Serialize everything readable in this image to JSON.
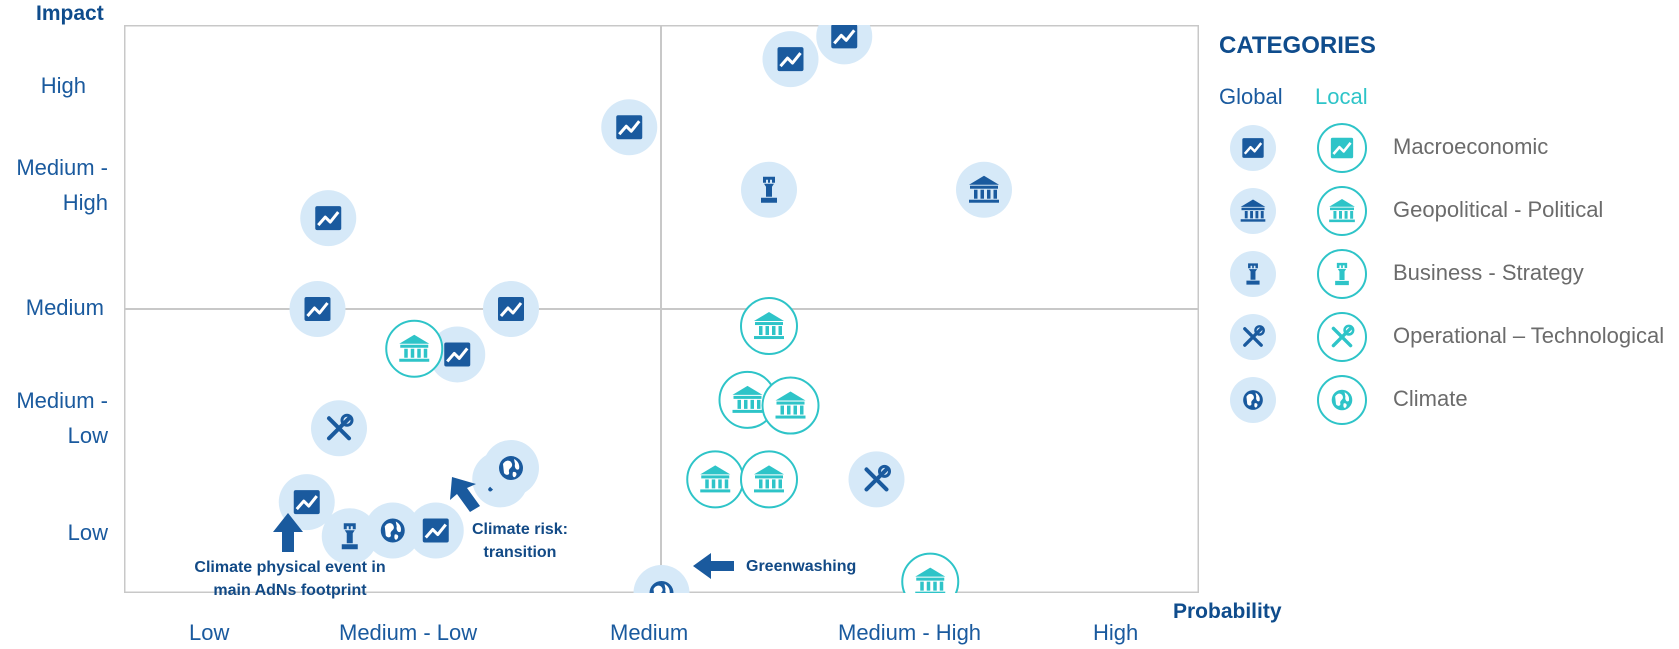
{
  "axes": {
    "y_title": "Impact",
    "x_title": "Probability",
    "y_levels": [
      {
        "lines": [
          "High"
        ]
      },
      {
        "lines": [
          "Medium -",
          "High"
        ]
      },
      {
        "lines": [
          "Medium"
        ]
      },
      {
        "lines": [
          "Medium -",
          "Low"
        ]
      },
      {
        "lines": [
          "Low"
        ]
      }
    ],
    "x_levels": [
      "Low",
      "Medium - Low",
      "Medium",
      "Medium - High",
      "High"
    ]
  },
  "legend": {
    "title": "CATEGORIES",
    "global_label": "Global",
    "local_label": "Local",
    "items": [
      {
        "icon": "macroeconomic-icon",
        "label": "Macroeconomic"
      },
      {
        "icon": "geopolitical-icon",
        "label": "Geopolitical - Political"
      },
      {
        "icon": "business-strategy-icon",
        "label": "Business - Strategy"
      },
      {
        "icon": "operational-icon",
        "label": "Operational – Technological"
      },
      {
        "icon": "climate-icon",
        "label": "Climate"
      }
    ]
  },
  "annotations": {
    "climate_physical": [
      "Climate physical event in",
      "main AdNs footprint"
    ],
    "climate_transition": [
      "Climate risk:",
      "transition"
    ],
    "greenwashing": [
      "Greenwashing"
    ]
  },
  "colors": {
    "global_icon": "#1a5a9e",
    "global_fill": "#d6e9f8",
    "local_icon": "#2ec4c8",
    "local_ring": "#2ec4c8",
    "local_fill": "#ffffff",
    "grid": "#c8c8c8",
    "axis_text": "#1a5a9e",
    "label_text": "#6b6b6b"
  },
  "chart_data": {
    "type": "scatter",
    "title": "",
    "xlabel": "Probability",
    "ylabel": "Impact",
    "x_categories": [
      "Low",
      "Medium - Low",
      "Medium",
      "Medium - High",
      "High"
    ],
    "y_categories": [
      "Low",
      "Medium - Low",
      "Medium",
      "Medium - High",
      "High"
    ],
    "xlim": [
      0.5,
      5.5
    ],
    "ylim": [
      0.5,
      5.5
    ],
    "grid": "quadrants",
    "legend_position": "right",
    "series": [
      {
        "name": "Global",
        "points": [
          {
            "x": 2.85,
            "y": 4.6,
            "category": "macroeconomic"
          },
          {
            "x": 3.6,
            "y": 5.2,
            "category": "macroeconomic"
          },
          {
            "x": 3.85,
            "y": 5.4,
            "category": "macroeconomic"
          },
          {
            "x": 1.45,
            "y": 3.8,
            "category": "macroeconomic"
          },
          {
            "x": 1.4,
            "y": 3.0,
            "category": "macroeconomic"
          },
          {
            "x": 2.3,
            "y": 3.0,
            "category": "macroeconomic"
          },
          {
            "x": 2.05,
            "y": 2.6,
            "category": "macroeconomic"
          },
          {
            "x": 1.95,
            "y": 1.05,
            "category": "macroeconomic"
          },
          {
            "x": 1.35,
            "y": 1.3,
            "category": "macroeconomic"
          },
          {
            "x": 4.5,
            "y": 4.05,
            "category": "geopolitical"
          },
          {
            "x": 3.5,
            "y": 4.05,
            "category": "business-strategy"
          },
          {
            "x": 1.55,
            "y": 1.0,
            "category": "business-strategy"
          },
          {
            "x": 3.0,
            "y": 0.4,
            "category": "business-strategy"
          },
          {
            "x": 1.5,
            "y": 1.95,
            "category": "operational"
          },
          {
            "x": 2.25,
            "y": 1.5,
            "category": "operational"
          },
          {
            "x": 4.0,
            "y": 1.5,
            "category": "operational"
          },
          {
            "x": 1.75,
            "y": 1.05,
            "category": "climate"
          },
          {
            "x": 2.3,
            "y": 1.6,
            "category": "climate"
          },
          {
            "x": 3.0,
            "y": 0.5,
            "category": "climate"
          }
        ]
      },
      {
        "name": "Local",
        "points": [
          {
            "x": 1.85,
            "y": 2.65,
            "category": "geopolitical"
          },
          {
            "x": 3.4,
            "y": 2.2,
            "category": "geopolitical"
          },
          {
            "x": 3.6,
            "y": 2.15,
            "category": "geopolitical"
          },
          {
            "x": 3.5,
            "y": 2.85,
            "category": "geopolitical"
          },
          {
            "x": 3.25,
            "y": 1.5,
            "category": "geopolitical"
          },
          {
            "x": 3.5,
            "y": 1.5,
            "category": "geopolitical"
          },
          {
            "x": 4.25,
            "y": 0.6,
            "category": "geopolitical"
          }
        ]
      }
    ]
  }
}
